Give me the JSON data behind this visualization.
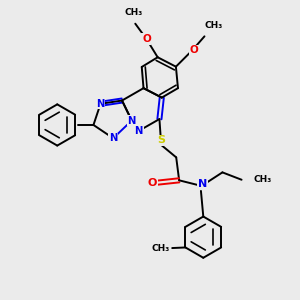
{
  "background_color": "#ebebeb",
  "bond_color": "#000000",
  "n_color": "#0000ee",
  "o_color": "#ee0000",
  "s_color": "#cccc00",
  "line_width": 1.4,
  "figsize": [
    3.0,
    3.0
  ],
  "dpi": 100,
  "xlim": [
    0,
    10
  ],
  "ylim": [
    0,
    10
  ]
}
